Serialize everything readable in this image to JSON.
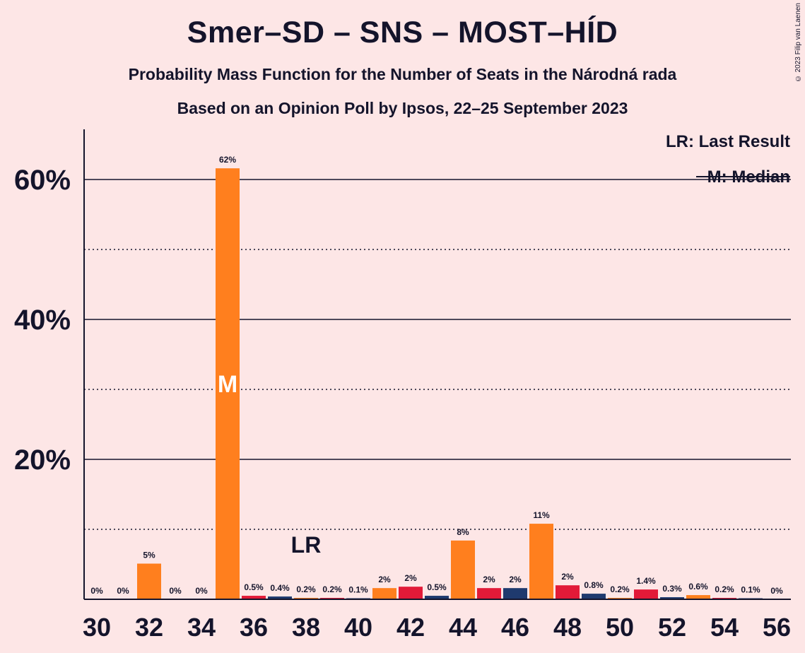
{
  "chart_data": {
    "type": "bar",
    "title": "Smer–SD – SNS – MOST–HÍD",
    "subtitle": "Probability Mass Function for the Number of Seats in the Národná rada",
    "subtitle2": "Based on an Opinion Poll by Ipsos, 22–25 September 2023",
    "copyright": "© 2023 Filip van Laenen",
    "legend": {
      "last_result": "LR: Last Result",
      "median": "M: Median",
      "placement": "top-right"
    },
    "markers": {
      "last_result_label": "LR",
      "last_result_seat": 38,
      "median_label": "M",
      "median_seat": 35
    },
    "ylim": [
      0,
      0.67
    ],
    "yticks": [
      {
        "value": 0.2,
        "label": "20%"
      },
      {
        "value": 0.4,
        "label": "40%"
      },
      {
        "value": 0.6,
        "label": "60%"
      }
    ],
    "dotted_gridlines": [
      0.1,
      0.3,
      0.5
    ],
    "xtick_labels": [
      "30",
      "32",
      "34",
      "36",
      "38",
      "40",
      "42",
      "44",
      "46",
      "48",
      "50",
      "52",
      "54",
      "56"
    ],
    "bars": [
      {
        "seat": 30,
        "value": 0.0,
        "label": "0%",
        "color": "#FF7F1E"
      },
      {
        "seat": 31,
        "value": 0.0,
        "label": "0%",
        "color": "#E21A38"
      },
      {
        "seat": 32,
        "value": 0.051,
        "label": "5%",
        "color": "#FF7F1E"
      },
      {
        "seat": 33,
        "value": 0.0,
        "label": "0%",
        "color": "#1F3A6E"
      },
      {
        "seat": 34,
        "value": 0.0,
        "label": "0%",
        "color": "#E21A38"
      },
      {
        "seat": 35,
        "value": 0.616,
        "label": "62%",
        "color": "#FF7F1E"
      },
      {
        "seat": 36,
        "value": 0.005,
        "label": "0.5%",
        "color": "#E21A38"
      },
      {
        "seat": 37,
        "value": 0.004,
        "label": "0.4%",
        "color": "#1F3A6E"
      },
      {
        "seat": 38,
        "value": 0.002,
        "label": "0.2%",
        "color": "#FF7F1E"
      },
      {
        "seat": 39,
        "value": 0.002,
        "label": "0.2%",
        "color": "#E21A38"
      },
      {
        "seat": 40,
        "value": 0.001,
        "label": "0.1%",
        "color": "#1F3A6E"
      },
      {
        "seat": 41,
        "value": 0.016,
        "label": "2%",
        "color": "#FF7F1E"
      },
      {
        "seat": 42,
        "value": 0.018,
        "label": "2%",
        "color": "#E21A38"
      },
      {
        "seat": 43,
        "value": 0.005,
        "label": "0.5%",
        "color": "#1F3A6E"
      },
      {
        "seat": 44,
        "value": 0.084,
        "label": "8%",
        "color": "#FF7F1E"
      },
      {
        "seat": 45,
        "value": 0.016,
        "label": "2%",
        "color": "#E21A38"
      },
      {
        "seat": 46,
        "value": 0.016,
        "label": "2%",
        "color": "#1F3A6E"
      },
      {
        "seat": 47,
        "value": 0.108,
        "label": "11%",
        "color": "#FF7F1E"
      },
      {
        "seat": 48,
        "value": 0.02,
        "label": "2%",
        "color": "#E21A38"
      },
      {
        "seat": 49,
        "value": 0.008,
        "label": "0.8%",
        "color": "#1F3A6E"
      },
      {
        "seat": 50,
        "value": 0.002,
        "label": "0.2%",
        "color": "#FF7F1E"
      },
      {
        "seat": 51,
        "value": 0.014,
        "label": "1.4%",
        "color": "#E21A38"
      },
      {
        "seat": 52,
        "value": 0.003,
        "label": "0.3%",
        "color": "#1F3A6E"
      },
      {
        "seat": 53,
        "value": 0.006,
        "label": "0.6%",
        "color": "#FF7F1E"
      },
      {
        "seat": 54,
        "value": 0.002,
        "label": "0.2%",
        "color": "#E21A38"
      },
      {
        "seat": 55,
        "value": 0.001,
        "label": "0.1%",
        "color": "#1F3A6E"
      },
      {
        "seat": 56,
        "value": 0.0,
        "label": "0%",
        "color": "#FF7F1E"
      }
    ]
  }
}
